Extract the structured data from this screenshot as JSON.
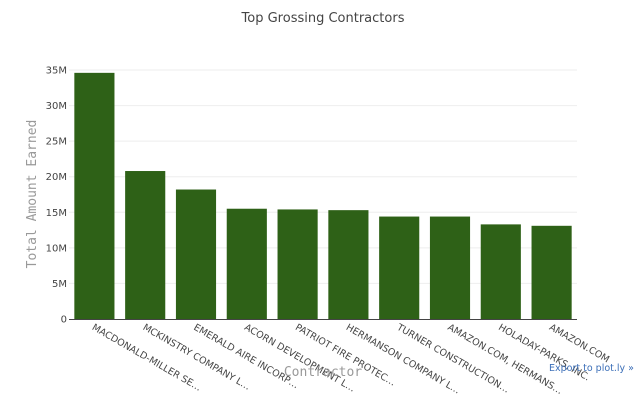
{
  "chart_data": {
    "type": "bar",
    "title": "Top Grossing Contractors",
    "xlabel": "Contractor",
    "ylabel": "Total Amount Earned",
    "categories": [
      "MACDONALD-MILLER SE…",
      "MCKINSTRY COMPANY L…",
      "EMERALD AIRE INCORP…",
      "ACORN DEVELOPMENT L…",
      "PATRIOT FIRE PROTEC…",
      "HERMANSON COMPANY L…",
      "TURNER CONSTRUCTION…",
      "AMAZON.COM, HERMANS…",
      "HOLADAY-PARKS, INC.",
      "AMAZON.COM"
    ],
    "values": [
      34600000,
      20800000,
      18200000,
      15500000,
      15400000,
      15300000,
      14400000,
      14400000,
      13300000,
      13100000
    ],
    "ylim": [
      0,
      35000000
    ],
    "yticks": [
      {
        "value": 0,
        "label": "0"
      },
      {
        "value": 5000000,
        "label": "5M"
      },
      {
        "value": 10000000,
        "label": "10M"
      },
      {
        "value": 15000000,
        "label": "15M"
      },
      {
        "value": 20000000,
        "label": "20M"
      },
      {
        "value": 25000000,
        "label": "25M"
      },
      {
        "value": 30000000,
        "label": "30M"
      },
      {
        "value": 35000000,
        "label": "35M"
      }
    ],
    "bar_color": "#2e6117",
    "grid": true
  },
  "export_link": {
    "label": "Export to plot.ly »"
  }
}
